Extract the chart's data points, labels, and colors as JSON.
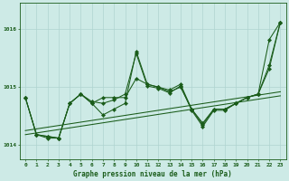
{
  "title": "Graphe pression niveau de la mer (hPa)",
  "bg_color": "#cdeae6",
  "grid_color": "#afd4d0",
  "line_color": "#1a5c1a",
  "xlim": [
    -0.5,
    23.5
  ],
  "ylim": [
    1013.75,
    1016.45
  ],
  "yticks": [
    1014,
    1015,
    1016
  ],
  "xticks": [
    0,
    1,
    2,
    3,
    4,
    5,
    6,
    7,
    8,
    9,
    10,
    11,
    12,
    13,
    14,
    15,
    16,
    17,
    18,
    19,
    20,
    21,
    22,
    23
  ],
  "line1": [
    1014.82,
    1014.18,
    1014.15,
    1014.12,
    1014.72,
    1014.88,
    1014.72,
    1014.82,
    1014.82,
    1014.82,
    1015.15,
    1015.05,
    1015.0,
    1014.92,
    1015.0,
    1014.62,
    1014.35,
    1014.62,
    1014.62,
    1014.72,
    1014.82,
    1014.88,
    1015.82,
    1016.12
  ],
  "line2": [
    1014.82,
    1014.18,
    1014.15,
    1014.12,
    1014.72,
    1014.88,
    1014.72,
    1014.52,
    1014.62,
    1014.72,
    1015.62,
    1015.05,
    1015.0,
    1014.95,
    1015.05,
    1014.62,
    1014.38,
    1014.62,
    1014.62,
    1014.72,
    1014.82,
    1014.88,
    1015.38,
    1016.12
  ],
  "line3": [
    1014.82,
    1014.18,
    1014.12,
    1014.12,
    1014.72,
    1014.88,
    1014.75,
    1014.72,
    1014.78,
    1014.88,
    1015.58,
    1015.02,
    1014.98,
    1014.9,
    1015.02,
    1014.6,
    1014.32,
    1014.6,
    1014.6,
    1014.72,
    1014.82,
    1014.88,
    1015.32,
    1016.12
  ],
  "trend1_x": [
    0,
    23
  ],
  "trend1_y": [
    1014.18,
    1014.85
  ],
  "trend2_x": [
    0,
    23
  ],
  "trend2_y": [
    1014.25,
    1014.92
  ]
}
